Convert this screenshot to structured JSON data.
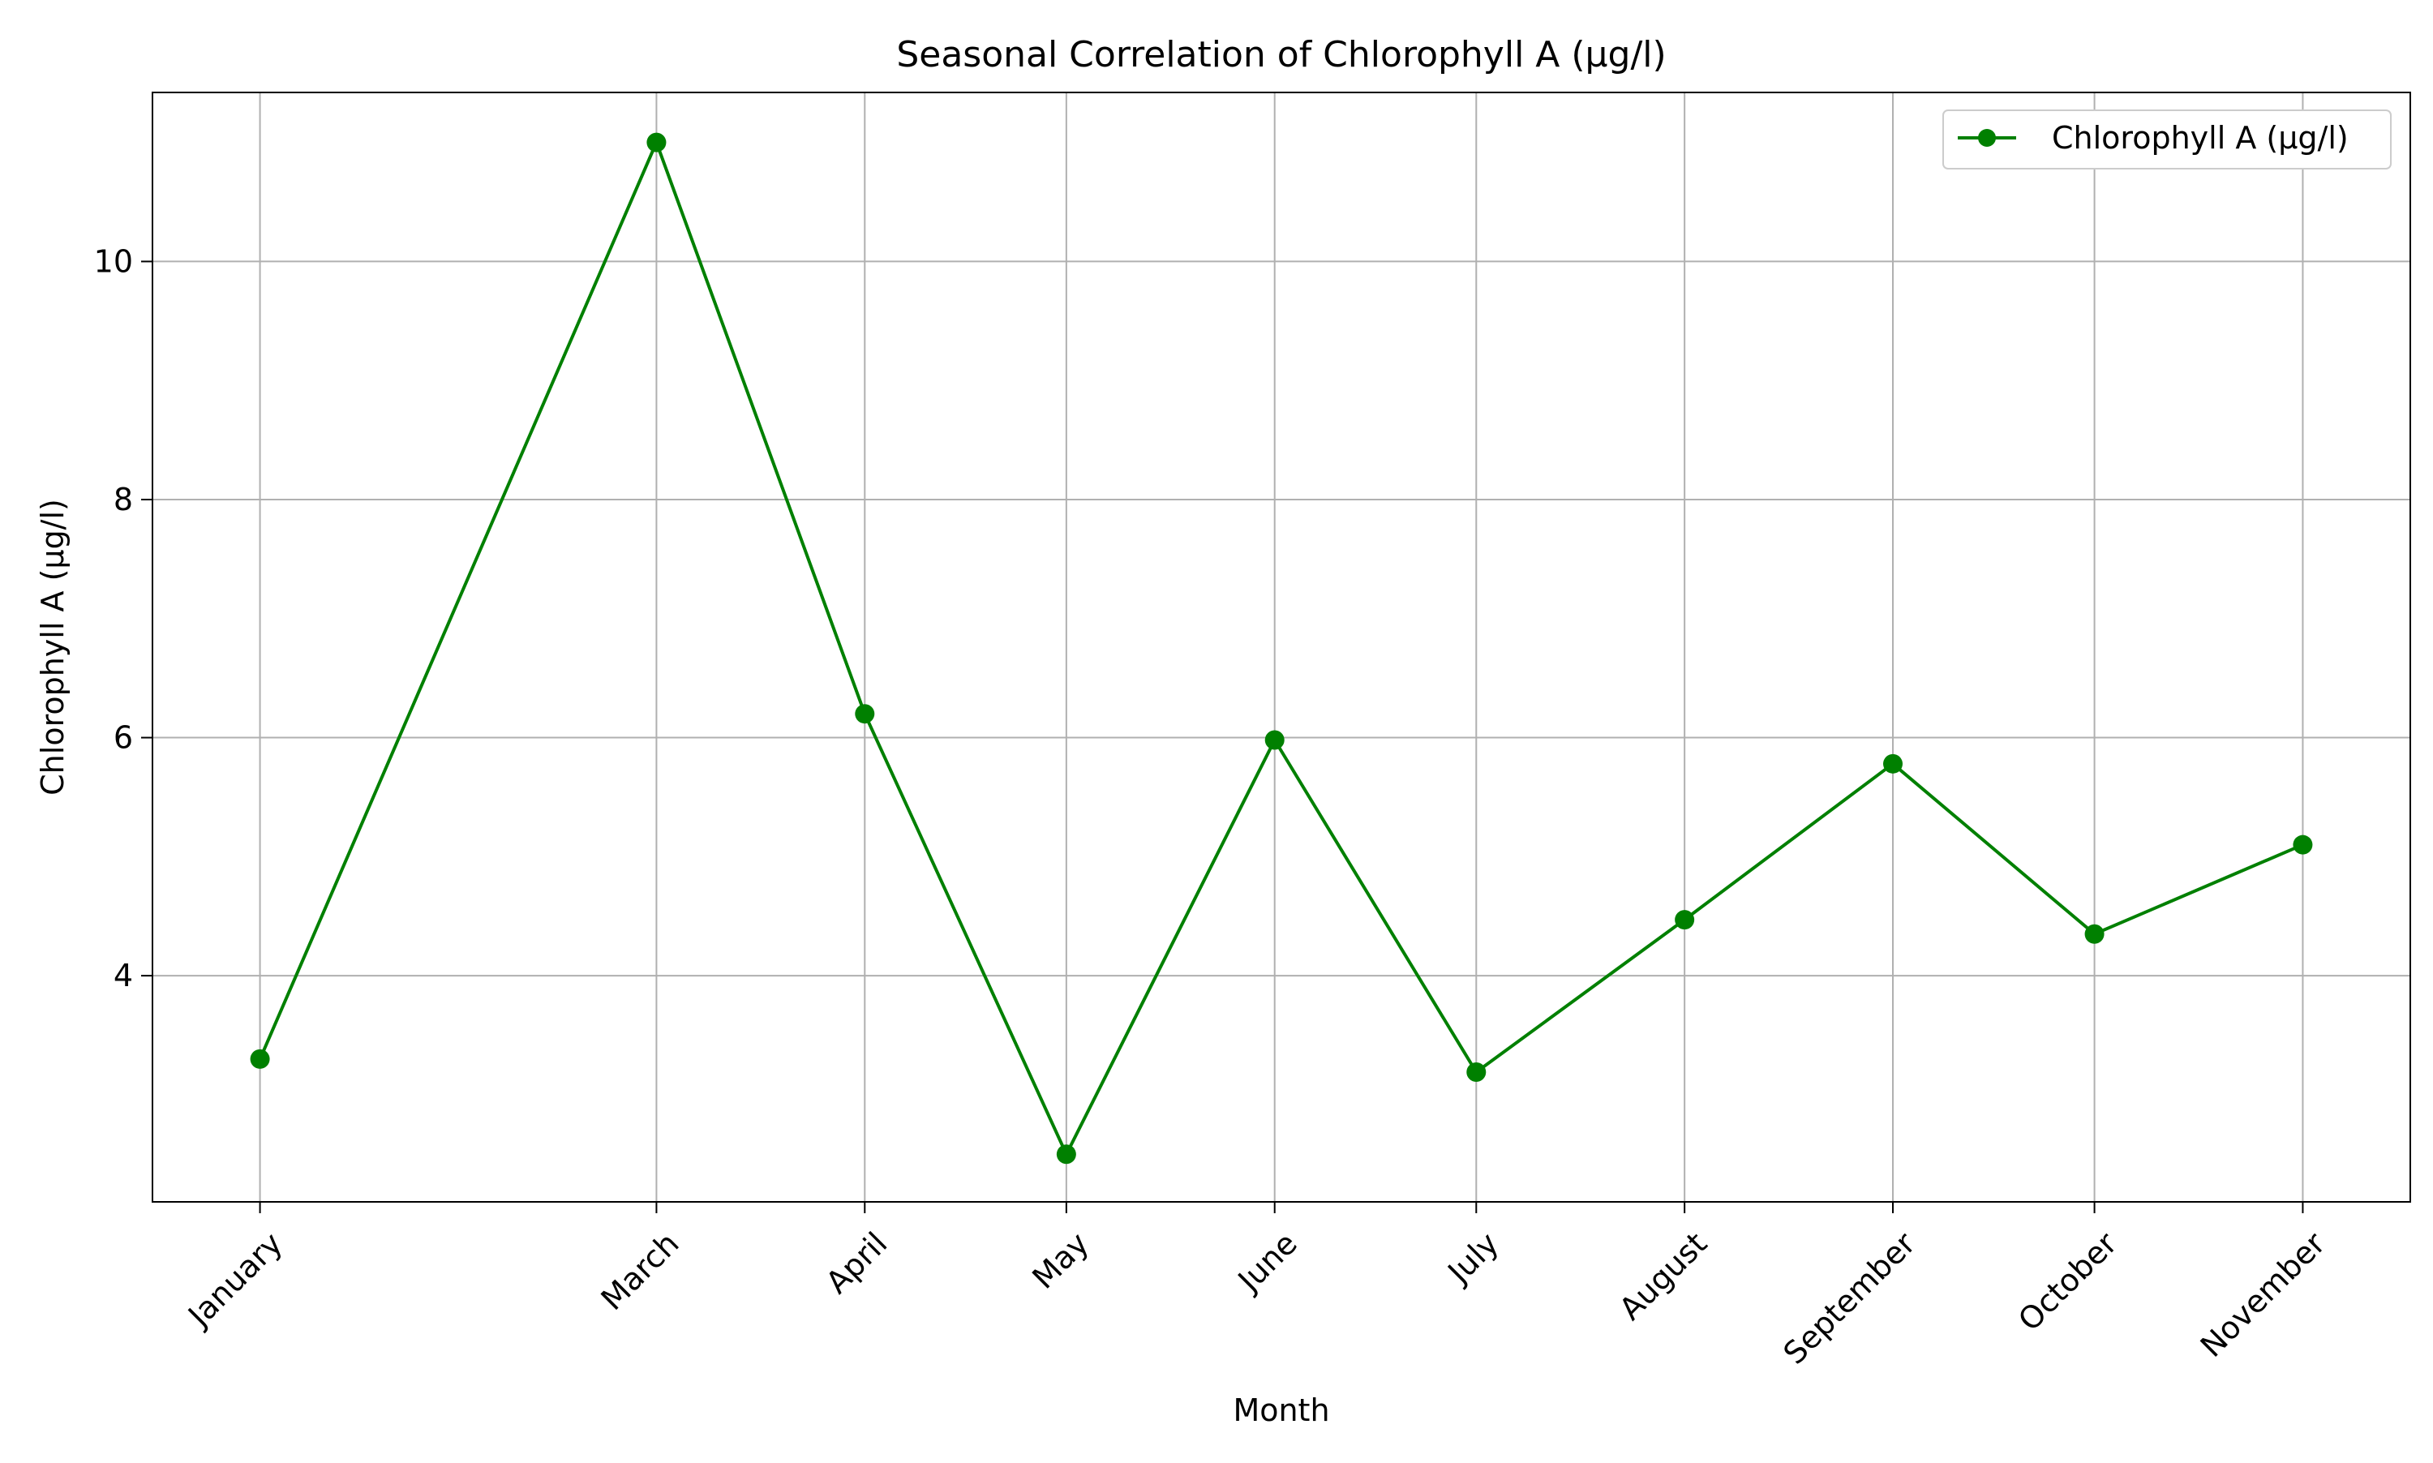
{
  "chart_data": {
    "type": "line",
    "title": "Seasonal Correlation of Chlorophyll A (µg/l)",
    "xlabel": "Month",
    "ylabel": "Chlorophyll A (µg/l)",
    "x": [
      "2023-01-01",
      "2023-03-01",
      "2023-04-01",
      "2023-05-01",
      "2023-06-01",
      "2023-07-01",
      "2023-08-01",
      "2023-09-01",
      "2023-10-01",
      "2023-11-01"
    ],
    "categories": [
      "January",
      "March",
      "April",
      "May",
      "June",
      "July",
      "August",
      "September",
      "October",
      "November"
    ],
    "series": [
      {
        "name": "Chlorophyll A (µg/l)",
        "color": "#008000",
        "values": [
          3.3,
          11.0,
          6.2,
          2.5,
          5.98,
          3.19,
          4.47,
          5.78,
          4.35,
          5.1
        ]
      }
    ],
    "yticks": [
      4,
      6,
      8,
      10
    ],
    "ylim": [
      2.1,
      11.42
    ],
    "xlim": [
      "2022-12-16",
      "2023-11-17"
    ],
    "grid": true,
    "legend_position": "top-right"
  }
}
